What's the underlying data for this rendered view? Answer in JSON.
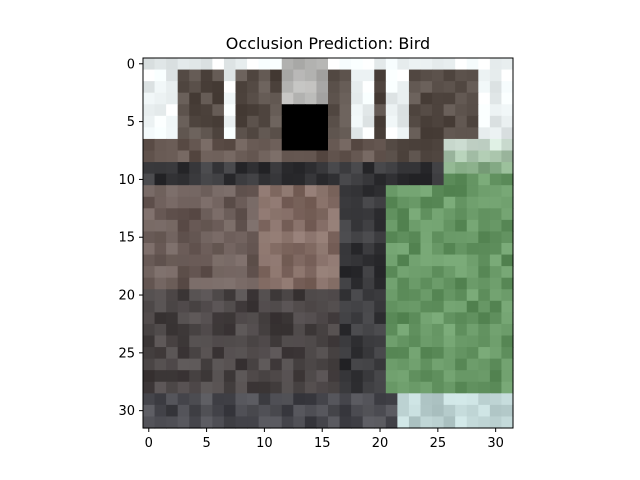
{
  "chart_data": {
    "type": "heatmap",
    "title": "Occlusion Prediction: Bird",
    "xlabel": "",
    "ylabel": "",
    "x_ticks": [
      "0",
      "5",
      "10",
      "15",
      "20",
      "25",
      "30"
    ],
    "y_ticks": [
      "0",
      "5",
      "10",
      "15",
      "20",
      "25",
      "30"
    ],
    "xlim": [
      -0.5,
      31.5
    ],
    "ylim": [
      31.5,
      -0.5
    ],
    "image_size": [
      32,
      32
    ],
    "occlusion_patch": {
      "rows": [
        4,
        7
      ],
      "cols": [
        12,
        15
      ],
      "color": "#000000"
    },
    "description": "32x32 pixelated photo of a brown/grey animal with large branching antlers against a pale sky, green grass on the lower right; a black square occlusion patch near the top center",
    "grid": false
  }
}
